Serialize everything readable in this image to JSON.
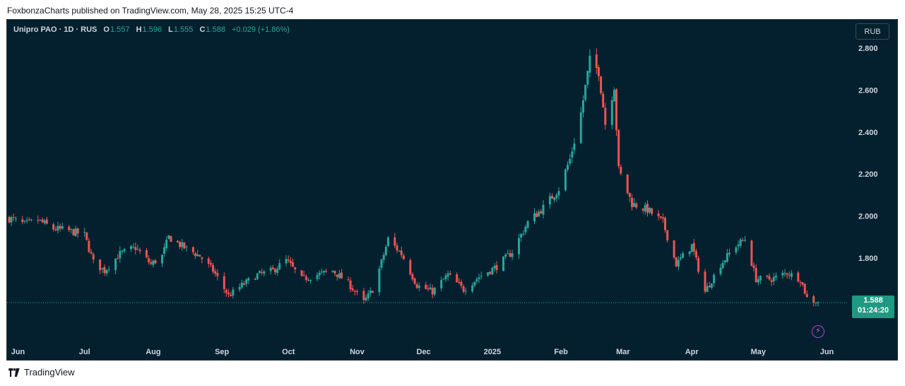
{
  "header": {
    "published": "FoxbonzaCharts published on TradingView.com, May 28, 2025 15:25 UTC-4"
  },
  "legend": {
    "symbol": "Unipro PAO · 1D · RUS",
    "o_label": "O",
    "o": "1.557",
    "h_label": "H",
    "h": "1.596",
    "l_label": "L",
    "l": "1.555",
    "c_label": "C",
    "c": "1.588",
    "change": "+0.029 (+1.86%)"
  },
  "currency_button": "RUB",
  "last_price": {
    "price": "1.588",
    "countdown": "01:24:20"
  },
  "footer": {
    "brand": "TradingView"
  },
  "colors": {
    "up": "#26a69a",
    "down": "#ef5350",
    "background": "#04202f",
    "price_label": "#1e9a82"
  },
  "icons": [
    "lightning-icon",
    "tradingview-logo-icon"
  ],
  "chart_data": {
    "type": "candlestick",
    "title": "Unipro PAO · 1D · RUS",
    "y_ticks": [
      "2.800",
      "2.600",
      "2.400",
      "2.200",
      "2.000",
      "1.800"
    ],
    "x_ticks": [
      "Jun",
      "Jul",
      "Aug",
      "Sep",
      "Oct",
      "Nov",
      "Dec",
      "2025",
      "Feb",
      "Mar",
      "Apr",
      "May",
      "Jun"
    ],
    "ylim": [
      1.42,
      2.93
    ],
    "last_close": 1.588,
    "close_series": [
      [
        "2024-05-28",
        1.99
      ],
      [
        "2024-06-04",
        1.96
      ],
      [
        "2024-06-10",
        1.98
      ],
      [
        "2024-06-17",
        1.94
      ],
      [
        "2024-06-24",
        1.93
      ],
      [
        "2024-07-01",
        1.91
      ],
      [
        "2024-07-05",
        1.78
      ],
      [
        "2024-07-10",
        1.74
      ],
      [
        "2024-07-17",
        1.82
      ],
      [
        "2024-07-24",
        1.85
      ],
      [
        "2024-07-31",
        1.77
      ],
      [
        "2024-08-05",
        1.81
      ],
      [
        "2024-08-08",
        1.9
      ],
      [
        "2024-08-15",
        1.85
      ],
      [
        "2024-08-22",
        1.81
      ],
      [
        "2024-08-28",
        1.74
      ],
      [
        "2024-09-04",
        1.62
      ],
      [
        "2024-09-10",
        1.67
      ],
      [
        "2024-09-17",
        1.72
      ],
      [
        "2024-09-24",
        1.74
      ],
      [
        "2024-09-30",
        1.79
      ],
      [
        "2024-10-07",
        1.7
      ],
      [
        "2024-10-14",
        1.72
      ],
      [
        "2024-10-21",
        1.74
      ],
      [
        "2024-10-28",
        1.68
      ],
      [
        "2024-11-04",
        1.59
      ],
      [
        "2024-11-08",
        1.65
      ],
      [
        "2024-11-12",
        1.78
      ],
      [
        "2024-11-15",
        1.89
      ],
      [
        "2024-11-21",
        1.82
      ],
      [
        "2024-11-28",
        1.67
      ],
      [
        "2024-12-05",
        1.64
      ],
      [
        "2024-12-12",
        1.72
      ],
      [
        "2024-12-19",
        1.65
      ],
      [
        "2024-12-26",
        1.71
      ],
      [
        "2025-01-03",
        1.76
      ],
      [
        "2025-01-10",
        1.83
      ],
      [
        "2025-01-17",
        1.97
      ],
      [
        "2025-01-24",
        2.04
      ],
      [
        "2025-01-31",
        2.13
      ],
      [
        "2025-02-05",
        2.27
      ],
      [
        "2025-02-10",
        2.49
      ],
      [
        "2025-02-14",
        2.74
      ],
      [
        "2025-02-18",
        2.69
      ],
      [
        "2025-02-21",
        2.44
      ],
      [
        "2025-02-25",
        2.62
      ],
      [
        "2025-02-27",
        2.22
      ],
      [
        "2025-03-05",
        2.06
      ],
      [
        "2025-03-12",
        2.03
      ],
      [
        "2025-03-19",
        1.97
      ],
      [
        "2025-03-25",
        1.77
      ],
      [
        "2025-04-01",
        1.86
      ],
      [
        "2025-04-07",
        1.64
      ],
      [
        "2025-04-14",
        1.77
      ],
      [
        "2025-04-21",
        1.86
      ],
      [
        "2025-04-25",
        1.89
      ],
      [
        "2025-04-30",
        1.7
      ],
      [
        "2025-05-07",
        1.7
      ],
      [
        "2025-05-14",
        1.73
      ],
      [
        "2025-05-20",
        1.7
      ],
      [
        "2025-05-23",
        1.61
      ],
      [
        "2025-05-28",
        1.588
      ]
    ]
  }
}
